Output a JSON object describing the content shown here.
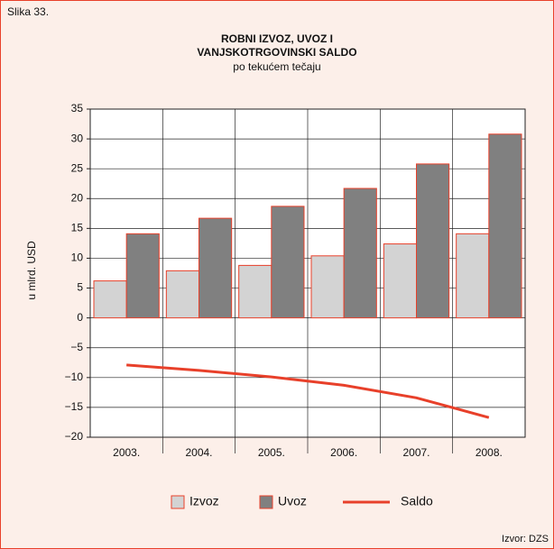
{
  "chart_data": {
    "type": "bar",
    "figure_label": "Slika 33.",
    "title": [
      "ROBNI IZVOZ, UVOZ I",
      "VANJSKOTRGOVINSKI SALDO"
    ],
    "subtitle": "po tekućem tečaju",
    "y_label": "u mlrd. USD",
    "source": "Izvor: DZS",
    "categories": [
      "2003.",
      "2004.",
      "2005.",
      "2006.",
      "2007.",
      "2008."
    ],
    "series": [
      {
        "name": "Izvoz",
        "type": "bar",
        "color": "#d3d3d3",
        "values": [
          6.2,
          7.9,
          8.8,
          10.4,
          12.4,
          14.1
        ]
      },
      {
        "name": "Uvoz",
        "type": "bar",
        "color": "#808080",
        "values": [
          14.1,
          16.7,
          18.7,
          21.7,
          25.8,
          30.8
        ]
      },
      {
        "name": "Saldo",
        "type": "line",
        "color": "#e8402a",
        "values": [
          -7.9,
          -8.8,
          -9.9,
          -11.3,
          -13.4,
          -16.7
        ]
      }
    ],
    "bar_edge_color": "#e8402a",
    "ylim": [
      -20,
      35
    ],
    "yticks": [
      {
        "value": -20,
        "label": "−20"
      },
      {
        "value": -15,
        "label": "−15"
      },
      {
        "value": -10,
        "label": "−10"
      },
      {
        "value": -5,
        "label": "−5"
      },
      0,
      5,
      10,
      15,
      20,
      25,
      30,
      35
    ],
    "grid": true
  }
}
